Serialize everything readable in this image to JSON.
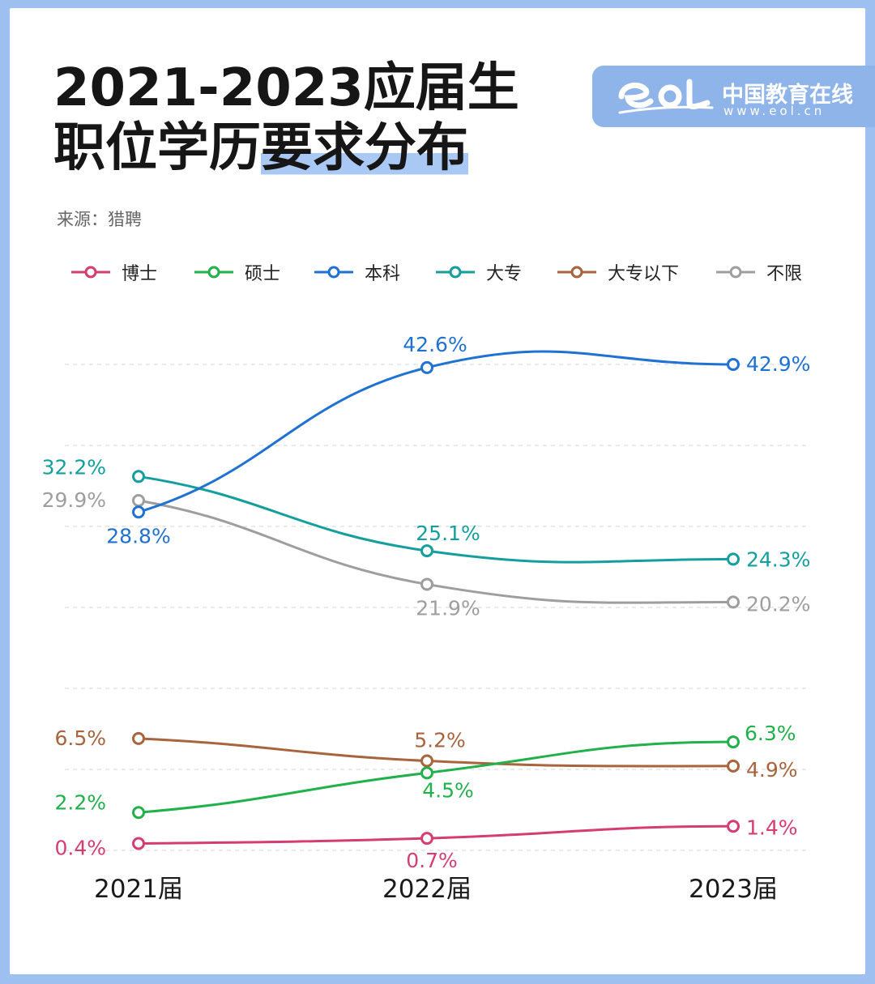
{
  "title": {
    "line1": "2021-2023应届生",
    "line2_plain": "职位学历",
    "line2_highlight": "要求分布"
  },
  "source": "来源：猎聘",
  "logo": {
    "text": "中国教育在线",
    "url": "www.eol.cn"
  },
  "chart_data": {
    "type": "line",
    "categories": [
      "2021届",
      "2022届",
      "2023届"
    ],
    "series": [
      {
        "name": "博士",
        "color": "#d63d6f",
        "values": [
          0.4,
          0.7,
          1.4
        ],
        "labels": [
          "0.4%",
          "0.7%",
          "1.4%"
        ]
      },
      {
        "name": "硕士",
        "color": "#22b04b",
        "values": [
          2.2,
          4.5,
          6.3
        ],
        "labels": [
          "2.2%",
          "4.5%",
          "6.3%"
        ]
      },
      {
        "name": "本科",
        "color": "#1f72d2",
        "values": [
          28.8,
          42.6,
          42.9
        ],
        "labels": [
          "28.8%",
          "42.6%",
          "42.9%"
        ]
      },
      {
        "name": "大专",
        "color": "#159e9e",
        "values": [
          32.2,
          25.1,
          24.3
        ],
        "labels": [
          "32.2%",
          "25.1%",
          "24.3%"
        ]
      },
      {
        "name": "大专以下",
        "color": "#a8643c",
        "values": [
          6.5,
          5.2,
          4.9
        ],
        "labels": [
          "6.5%",
          "5.2%",
          "4.9%"
        ]
      },
      {
        "name": "不限",
        "color": "#9e9e9e",
        "values": [
          29.9,
          21.9,
          20.2
        ],
        "labels": [
          "29.9%",
          "21.9%",
          "20.2%"
        ]
      }
    ],
    "grid": true,
    "legend_position": "top"
  }
}
